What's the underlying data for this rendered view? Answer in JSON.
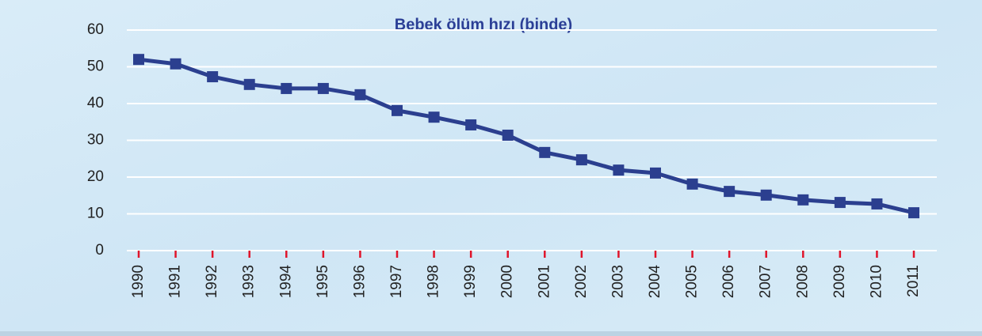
{
  "chart_data": {
    "type": "line",
    "title": "Bebek ölüm hızı (binde)",
    "categories": [
      "1990",
      "1991",
      "1992",
      "1993",
      "1994",
      "1995",
      "1996",
      "1997",
      "1998",
      "1999",
      "2000",
      "2001",
      "2002",
      "2003",
      "2004",
      "2005",
      "2006",
      "2007",
      "2008",
      "2009",
      "2010",
      "2011"
    ],
    "series": [
      {
        "name": "Bebek ölüm hızı",
        "color": "#2b3f8f",
        "values": [
          52.0,
          50.8,
          47.3,
          45.2,
          44.1,
          44.1,
          42.4,
          38.1,
          36.3,
          34.2,
          31.4,
          26.7,
          24.7,
          21.9,
          21.1,
          18.1,
          16.1,
          15.1,
          13.8,
          13.1,
          12.7,
          10.3
        ]
      }
    ],
    "ylim": [
      0,
      60
    ],
    "yticks": [
      0,
      10,
      20,
      30,
      40,
      50,
      60
    ],
    "grid": true
  }
}
